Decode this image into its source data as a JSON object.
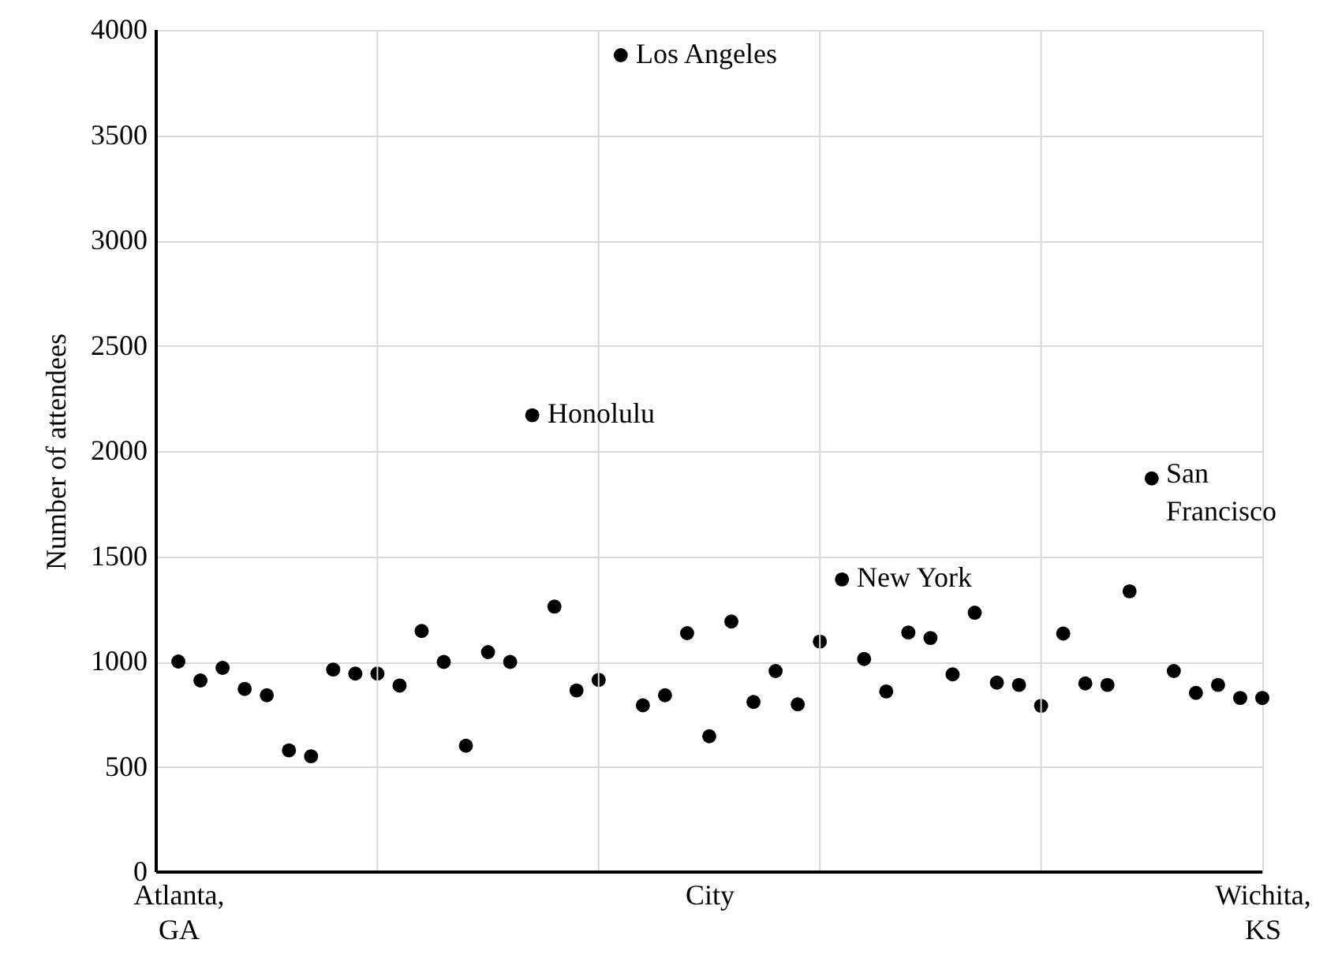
{
  "chart_data": {
    "type": "scatter",
    "xlabel": "City",
    "ylabel": "Number of attendees",
    "categories": [
      "Atlanta, GA",
      null,
      null,
      null,
      null,
      null,
      null,
      null,
      null,
      null,
      null,
      null,
      null,
      null,
      null,
      null,
      null,
      null,
      null,
      null,
      null,
      null,
      null,
      null,
      null,
      null,
      null,
      null,
      null,
      null,
      null,
      null,
      null,
      null,
      null,
      null,
      null,
      null,
      null,
      null,
      null,
      null,
      null,
      null,
      null,
      null,
      null,
      null,
      null,
      "Wichita, KS"
    ],
    "series": [
      {
        "color": "#000000",
        "values": [
          1000,
          910,
          970,
          870,
          840,
          578,
          550,
          962,
          943,
          943,
          886,
          1145,
          998,
          600,
          1045,
          998,
          2170,
          1261,
          863,
          913,
          3880,
          792,
          840,
          1135,
          645,
          1190,
          808,
          955,
          797,
          1095,
          1390,
          1012,
          858,
          1138,
          1112,
          939,
          1232,
          900,
          889,
          790,
          1133,
          896,
          889,
          1334,
          1870,
          955,
          851,
          889,
          827,
          827
        ]
      }
    ],
    "ylim": [
      0,
      4000
    ],
    "yticks": [
      0,
      500,
      1000,
      1500,
      2000,
      2500,
      3000,
      3500,
      4000
    ],
    "grid": true,
    "marker": "circle",
    "annotations": [
      "Los Angeles",
      "Honolulu",
      "New York",
      "San Francisco"
    ]
  }
}
